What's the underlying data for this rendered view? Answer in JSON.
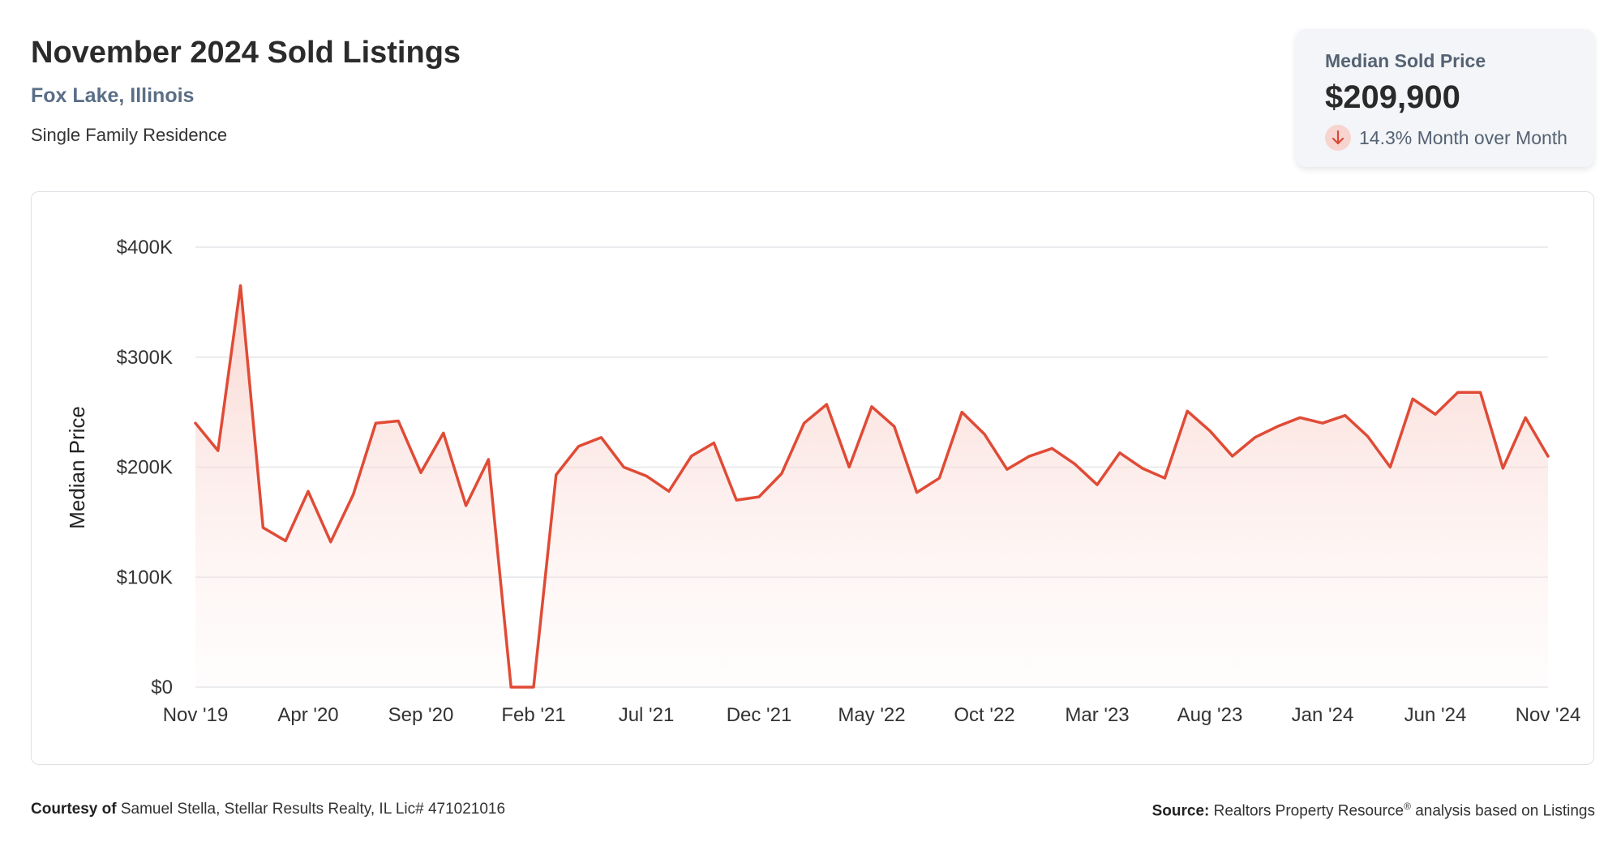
{
  "header": {
    "title": "November 2024 Sold Listings",
    "location": "Fox Lake, Illinois",
    "property_type": "Single Family Residence"
  },
  "stat": {
    "label": "Median Sold Price",
    "value": "$209,900",
    "change": "14.3% Month over Month",
    "change_direction": "down",
    "icon": "arrow-down-icon",
    "accent_color": "#d94a38"
  },
  "chart_data": {
    "type": "area",
    "ylabel": "Median Price",
    "xlabel": "",
    "ylim": [
      0,
      400000
    ],
    "y_ticks": [
      0,
      100000,
      200000,
      300000,
      400000
    ],
    "y_tick_labels": [
      "$0",
      "$100K",
      "$200K",
      "$300K",
      "$400K"
    ],
    "x_tick_labels": [
      "Nov '19",
      "Apr '20",
      "Sep '20",
      "Feb '21",
      "Jul '21",
      "Dec '21",
      "May '22",
      "Oct '22",
      "Mar '23",
      "Aug '23",
      "Jan '24",
      "Jun '24",
      "Nov '24"
    ],
    "x_tick_every": 5,
    "grid": true,
    "line_color": "#e04b36",
    "fill_color": "#f9d9d4",
    "series": [
      {
        "values": [
          240000,
          215000,
          365000,
          145000,
          133000,
          178000,
          132000,
          175000,
          240000,
          242000,
          195000,
          231000,
          165000,
          207000,
          0,
          0,
          193000,
          219000,
          227000,
          200000,
          192000,
          178000,
          210000,
          222000,
          170000,
          173000,
          194000,
          240000,
          257000,
          200000,
          255000,
          237000,
          177000,
          190000,
          250000,
          230000,
          198000,
          210000,
          217000,
          203000,
          184000,
          213000,
          199000,
          190000,
          251000,
          233000,
          210000,
          227000,
          237000,
          245000,
          240000,
          247000,
          228000,
          200000,
          262000,
          248000,
          268000,
          268000,
          199000,
          245000,
          209900
        ]
      }
    ]
  },
  "footer": {
    "courtesy_label": "Courtesy of",
    "courtesy_text": "Samuel Stella, Stellar Results Realty, IL Lic# 471021016",
    "source_label": "Source:",
    "source_text_1": "Realtors Property Resource",
    "source_reg": "®",
    "source_text_2": "analysis based on Listings"
  }
}
